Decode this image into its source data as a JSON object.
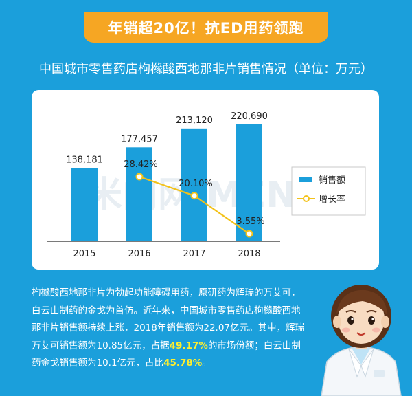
{
  "banner": {
    "text": "年销超20亿！抗ED用药领跑"
  },
  "chart_title": "中国城市零售药店枸橼酸西地那非片销售情况（单位：万元）",
  "chart_data": {
    "type": "bar",
    "categories": [
      "2015",
      "2016",
      "2017",
      "2018"
    ],
    "series": [
      {
        "name": "销售额",
        "type": "bar",
        "values": [
          138181,
          177457,
          213120,
          220690
        ],
        "labels": [
          "138,181",
          "177,457",
          "213,120",
          "220,690"
        ]
      },
      {
        "name": "增长率",
        "type": "line",
        "values": [
          null,
          28.42,
          20.1,
          3.55
        ],
        "labels": [
          "",
          "28.42%",
          "20.10%",
          "3.55%"
        ]
      }
    ],
    "legend": "right",
    "colors": {
      "bar": "#1b9fdb",
      "line": "#f3c21a",
      "axis": "#2a2a2a"
    }
  },
  "watermark": "米内网 MENET",
  "description": {
    "text_1": "枸橼酸西地那非片为勃起功能障碍用药，原研药为辉瑞的万艾可，白云山制药的金戈为首仿。近年来，中国城市零售药店枸橼酸西地那非片销售额持续上涨，2018年销售额为22.07亿元。其中，辉瑞万艾可销售额为10.85亿元，占据",
    "highlight_1": "49.17%",
    "text_2": "的市场份额；白云山制药金戈销售额为10.1亿元，占比",
    "highlight_2": "45.78%",
    "text_3": "。"
  }
}
